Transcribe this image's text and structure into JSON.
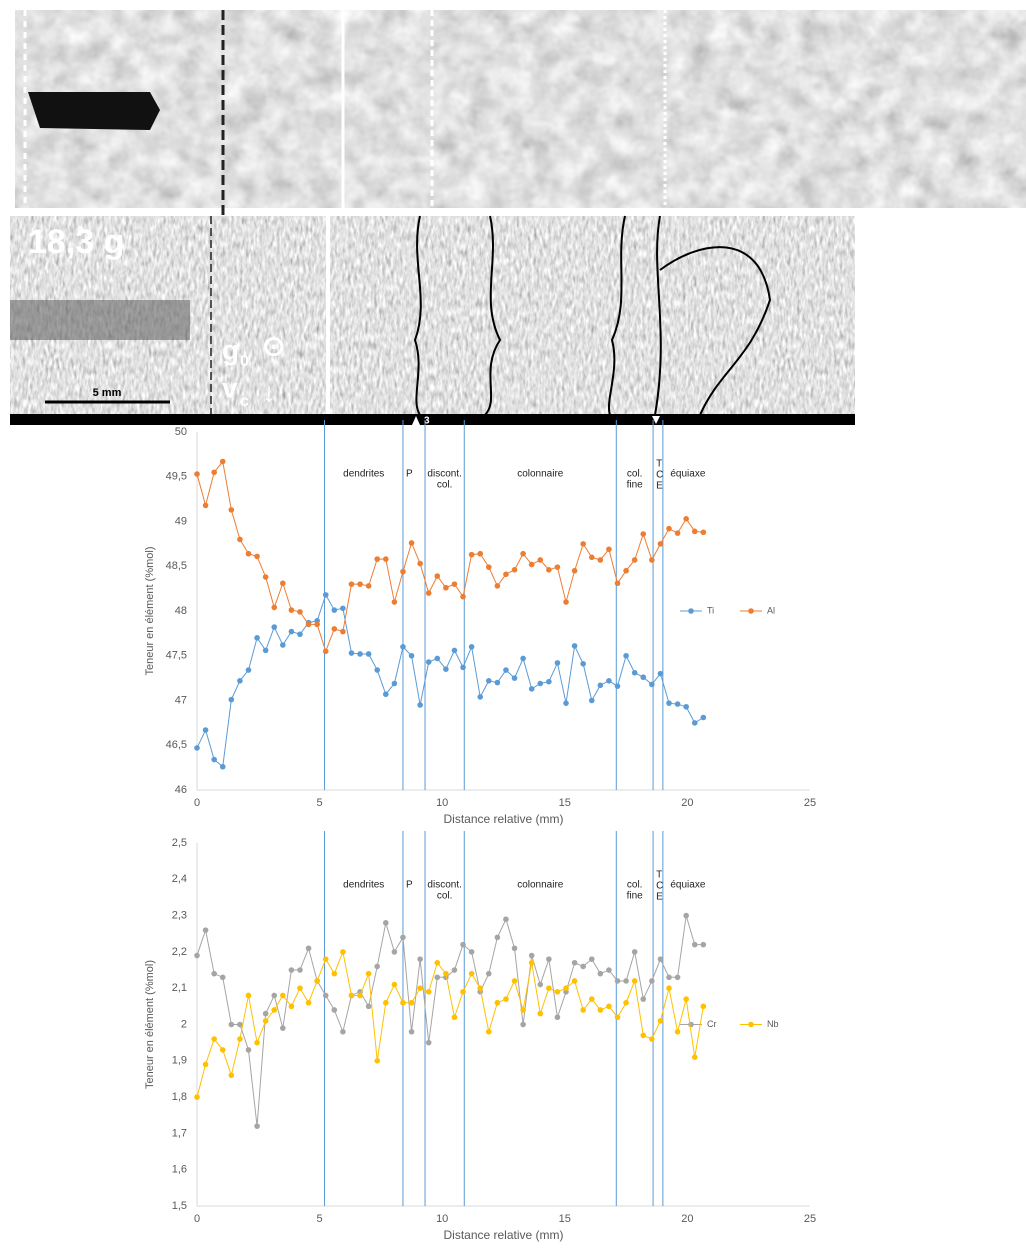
{
  "image_labels": {
    "gravity": "18,3 g",
    "g_symbol": "g",
    "g_sub": "0",
    "g_dir": "⊙",
    "v_symbol": "v",
    "v_sub": "c",
    "v_dir": "↓",
    "scale": "5 mm",
    "marker": "3"
  },
  "chart_data": [
    {
      "type": "line",
      "x_label": "Distance relative (mm)",
      "y_label": "Teneur en élément (%mol)",
      "x": [
        0,
        0.35,
        0.7,
        1.05,
        1.4,
        1.75,
        2.1,
        2.45,
        2.8,
        3.15,
        3.5,
        3.85,
        4.2,
        4.55,
        4.9,
        5.25,
        5.6,
        5.95,
        6.3,
        6.65,
        7.0,
        7.35,
        7.7,
        8.05,
        8.4,
        8.75,
        9.1,
        9.45,
        9.8,
        10.15,
        10.5,
        10.85,
        11.2,
        11.55,
        11.9,
        12.25,
        12.6,
        12.95,
        13.3,
        13.65,
        14.0,
        14.35,
        14.7,
        15.05,
        15.4,
        15.75,
        16.1,
        16.45,
        16.8,
        17.15,
        17.5,
        17.85,
        18.2,
        18.55,
        18.9,
        19.25,
        19.6,
        19.95,
        20.3,
        20.65
      ],
      "series": [
        {
          "name": "Ti",
          "color": "#5b9bd5",
          "values": [
            46.47,
            46.67,
            46.34,
            46.26,
            47.01,
            47.22,
            47.34,
            47.7,
            47.56,
            47.82,
            47.62,
            47.77,
            47.74,
            47.87,
            47.89,
            48.18,
            48.01,
            48.03,
            47.53,
            47.52,
            47.52,
            47.34,
            47.07,
            47.19,
            47.6,
            47.5,
            46.95,
            47.43,
            47.47,
            47.35,
            47.56,
            47.37,
            47.6,
            47.04,
            47.22,
            47.2,
            47.34,
            47.25,
            47.47,
            47.13,
            47.19,
            47.21,
            47.42,
            46.97,
            47.61,
            47.41,
            47.0,
            47.17,
            47.22,
            47.16,
            47.5,
            47.31,
            47.26,
            47.18,
            47.3,
            46.97,
            46.96,
            46.93,
            46.75,
            46.81
          ]
        },
        {
          "name": "Al",
          "color": "#ed7d31",
          "values": [
            49.53,
            49.18,
            49.55,
            49.67,
            49.13,
            48.8,
            48.64,
            48.61,
            48.38,
            48.04,
            48.31,
            48.01,
            47.99,
            47.85,
            47.85,
            47.55,
            47.8,
            47.77,
            48.3,
            48.3,
            48.28,
            48.58,
            48.58,
            48.1,
            48.44,
            48.76,
            48.53,
            48.2,
            48.39,
            48.26,
            48.3,
            48.16,
            48.63,
            48.64,
            48.49,
            48.28,
            48.41,
            48.46,
            48.64,
            48.52,
            48.57,
            48.46,
            48.49,
            48.1,
            48.45,
            48.75,
            48.6,
            48.57,
            48.69,
            48.31,
            48.45,
            48.57,
            48.86,
            48.57,
            48.75,
            48.92,
            48.87,
            49.03,
            48.89,
            48.88
          ]
        }
      ],
      "xlim": [
        0,
        25
      ],
      "xticks": [
        0,
        5,
        10,
        15,
        20,
        25
      ],
      "ylim": [
        46,
        50
      ],
      "yticks": [
        46,
        {
          "value": 46.5,
          "label": "46,5"
        },
        47,
        {
          "value": 47.5,
          "label": "47,5"
        },
        48,
        {
          "value": 48.5,
          "label": "48,5"
        },
        49,
        {
          "value": 49.5,
          "label": "49,5"
        },
        50
      ],
      "grid": false,
      "legend": "right",
      "boundary_color": "#5b9bd5",
      "boundaries": [
        5.2,
        8.4,
        9.3,
        10.9,
        17.1,
        18.6,
        19.0
      ],
      "zone_labels": [
        [
          "dendrites"
        ],
        [
          "P"
        ],
        [
          "discont.",
          "col."
        ],
        [
          "colonnaire"
        ],
        [
          "col.",
          "fine"
        ],
        [
          "T",
          "C",
          "E"
        ],
        [
          "équiaxe"
        ]
      ]
    },
    {
      "type": "line",
      "x_label": "Distance relative (mm)",
      "y_label": "Teneur en élément (%mol)",
      "x": [
        0,
        0.35,
        0.7,
        1.05,
        1.4,
        1.75,
        2.1,
        2.45,
        2.8,
        3.15,
        3.5,
        3.85,
        4.2,
        4.55,
        4.9,
        5.25,
        5.6,
        5.95,
        6.3,
        6.65,
        7.0,
        7.35,
        7.7,
        8.05,
        8.4,
        8.75,
        9.1,
        9.45,
        9.8,
        10.15,
        10.5,
        10.85,
        11.2,
        11.55,
        11.9,
        12.25,
        12.6,
        12.95,
        13.3,
        13.65,
        14.0,
        14.35,
        14.7,
        15.05,
        15.4,
        15.75,
        16.1,
        16.45,
        16.8,
        17.15,
        17.5,
        17.85,
        18.2,
        18.55,
        18.9,
        19.25,
        19.6,
        19.95,
        20.3,
        20.65
      ],
      "series": [
        {
          "name": "Cr",
          "color": "#a5a5a5",
          "values": [
            2.19,
            2.26,
            2.14,
            2.13,
            2.0,
            2.0,
            1.93,
            1.72,
            2.03,
            2.08,
            1.99,
            2.15,
            2.15,
            2.21,
            2.12,
            2.08,
            2.04,
            1.98,
            2.08,
            2.09,
            2.05,
            2.16,
            2.28,
            2.2,
            2.24,
            1.98,
            2.18,
            1.95,
            2.13,
            2.13,
            2.15,
            2.22,
            2.2,
            2.09,
            2.14,
            2.24,
            2.29,
            2.21,
            2.0,
            2.19,
            2.11,
            2.18,
            2.02,
            2.09,
            2.17,
            2.16,
            2.18,
            2.14,
            2.15,
            2.12,
            2.12,
            2.2,
            2.07,
            2.12,
            2.18,
            2.13,
            2.13,
            2.3,
            2.22,
            2.22
          ]
        },
        {
          "name": "Nb",
          "color": "#ffc000",
          "values": [
            1.8,
            1.89,
            1.96,
            1.93,
            1.86,
            1.96,
            2.08,
            1.95,
            2.01,
            2.04,
            2.08,
            2.05,
            2.1,
            2.06,
            2.12,
            2.18,
            2.14,
            2.2,
            2.08,
            2.08,
            2.14,
            1.9,
            2.06,
            2.11,
            2.06,
            2.06,
            2.1,
            2.09,
            2.17,
            2.14,
            2.02,
            2.09,
            2.14,
            2.1,
            1.98,
            2.06,
            2.07,
            2.12,
            2.04,
            2.17,
            2.03,
            2.1,
            2.09,
            2.1,
            2.12,
            2.04,
            2.07,
            2.04,
            2.05,
            2.02,
            2.06,
            2.12,
            1.97,
            1.96,
            2.01,
            2.1,
            1.98,
            2.07,
            1.91,
            2.05
          ]
        }
      ],
      "xlim": [
        0,
        25
      ],
      "xticks": [
        0,
        5,
        10,
        15,
        20,
        25
      ],
      "ylim": [
        1.5,
        2.5
      ],
      "yticks": [
        {
          "value": 1.5,
          "label": "1,5"
        },
        {
          "value": 1.6,
          "label": "1,6"
        },
        {
          "value": 1.7,
          "label": "1,7"
        },
        {
          "value": 1.8,
          "label": "1,8"
        },
        {
          "value": 1.9,
          "label": "1,9"
        },
        2,
        {
          "value": 2.1,
          "label": "2,1"
        },
        {
          "value": 2.2,
          "label": "2,2"
        },
        {
          "value": 2.3,
          "label": "2,3"
        },
        {
          "value": 2.4,
          "label": "2,4"
        },
        {
          "value": 2.5,
          "label": "2,5"
        }
      ],
      "grid": false,
      "legend": "right",
      "boundary_color": "#5b9bd5",
      "boundaries": [
        5.2,
        8.4,
        9.3,
        10.9,
        17.1,
        18.6,
        19.0
      ],
      "zone_labels": [
        [
          "dendrites"
        ],
        [
          "P"
        ],
        [
          "discont.",
          "col."
        ],
        [
          "colonnaire"
        ],
        [
          "col.",
          "fine"
        ],
        [
          "T",
          "C",
          "E"
        ],
        [
          "équiaxe"
        ]
      ]
    }
  ]
}
